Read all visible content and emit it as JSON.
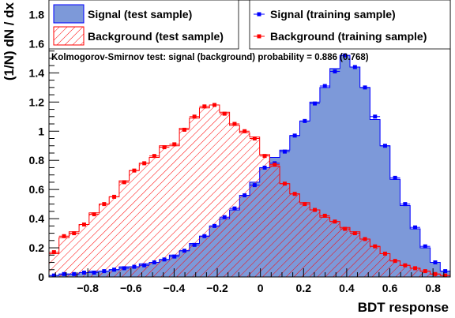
{
  "chart_data": {
    "type": "histogram",
    "xlabel": "BDT response",
    "ylabel": "(1/N) dN / dx",
    "xlim": [
      -0.98,
      0.88
    ],
    "ylim": [
      0,
      1.9
    ],
    "x_ticks": [
      -0.8,
      -0.6,
      -0.4,
      -0.2,
      0,
      0.2,
      0.4,
      0.6,
      0.8
    ],
    "x_tick_labels": [
      "−0.8",
      "−0.6",
      "−0.4",
      "−0.2",
      "0",
      "0.2",
      "0.4",
      "0.6",
      "0.8"
    ],
    "y_ticks": [
      0,
      0.2,
      0.4,
      0.6,
      0.8,
      1,
      1.2,
      1.4,
      1.6,
      1.8
    ],
    "y_tick_labels": [
      "0",
      "0.2",
      "0.4",
      "0.6",
      "0.8",
      "1",
      "1.2",
      "1.4",
      "1.6",
      "1.8"
    ],
    "annotation": "Kolmogorov-Smirnov test: signal (background) probability = 0.886 (0.768)",
    "legend": [
      {
        "label": "Signal (test sample)",
        "style": "fill",
        "color": "#7d99d9"
      },
      {
        "label": "Background (test sample)",
        "style": "hatch",
        "color": "#ff0000"
      },
      {
        "label": "Signal (training sample)",
        "style": "marker",
        "color": "#0000ff"
      },
      {
        "label": "Background (training sample)",
        "style": "marker",
        "color": "#ff0000"
      }
    ],
    "bin_edges": [
      -0.98,
      -0.9335,
      -0.887,
      -0.8405,
      -0.794,
      -0.7475,
      -0.701,
      -0.6545,
      -0.608,
      -0.5615,
      -0.515,
      -0.4685,
      -0.422,
      -0.3755,
      -0.329,
      -0.2825,
      -0.236,
      -0.1895,
      -0.143,
      -0.0965,
      -0.05,
      -0.0035,
      0.043,
      0.0895,
      0.136,
      0.1825,
      0.229,
      0.2755,
      0.322,
      0.3685,
      0.415,
      0.4615,
      0.508,
      0.5545,
      0.601,
      0.6475,
      0.694,
      0.7405,
      0.787,
      0.8335,
      0.88
    ],
    "series": [
      {
        "name": "Signal (test sample)",
        "style": "fill",
        "color": "#7d99d9",
        "values": [
          0.01,
          0.02,
          0.02,
          0.03,
          0.04,
          0.04,
          0.05,
          0.07,
          0.07,
          0.09,
          0.1,
          0.12,
          0.15,
          0.18,
          0.23,
          0.28,
          0.35,
          0.4,
          0.46,
          0.56,
          0.65,
          0.75,
          0.82,
          0.87,
          0.97,
          1.07,
          1.2,
          1.3,
          1.43,
          1.52,
          1.44,
          1.3,
          1.08,
          0.9,
          0.67,
          0.49,
          0.33,
          0.2,
          0.1,
          0.04
        ]
      },
      {
        "name": "Background (test sample)",
        "style": "hatch",
        "color": "#ff0000",
        "values": [
          0.16,
          0.27,
          0.31,
          0.36,
          0.44,
          0.5,
          0.55,
          0.66,
          0.73,
          0.78,
          0.82,
          0.9,
          0.9,
          1.02,
          1.09,
          1.16,
          1.18,
          1.13,
          1.04,
          0.99,
          0.96,
          0.84,
          0.76,
          0.64,
          0.57,
          0.51,
          0.46,
          0.41,
          0.38,
          0.34,
          0.31,
          0.26,
          0.21,
          0.16,
          0.11,
          0.08,
          0.06,
          0.04,
          0.02,
          0.01
        ]
      },
      {
        "name": "Signal (training sample)",
        "style": "marker",
        "color": "#0000ff",
        "values": [
          0.01,
          0.02,
          0.02,
          0.03,
          0.03,
          0.04,
          0.05,
          0.06,
          0.07,
          0.08,
          0.1,
          0.12,
          0.14,
          0.18,
          0.22,
          0.28,
          0.35,
          0.41,
          0.47,
          0.56,
          0.63,
          0.75,
          0.78,
          0.86,
          0.97,
          1.07,
          1.19,
          1.31,
          1.41,
          1.52,
          1.44,
          1.3,
          1.1,
          0.9,
          0.68,
          0.5,
          0.34,
          0.21,
          0.1,
          0.04
        ]
      },
      {
        "name": "Background (training sample)",
        "style": "marker",
        "color": "#ff0000",
        "values": [
          0.17,
          0.28,
          0.3,
          0.36,
          0.43,
          0.5,
          0.55,
          0.65,
          0.73,
          0.78,
          0.83,
          0.89,
          0.91,
          1.01,
          1.1,
          1.17,
          1.18,
          1.12,
          1.05,
          1.0,
          0.95,
          0.83,
          0.77,
          0.64,
          0.57,
          0.5,
          0.46,
          0.42,
          0.38,
          0.33,
          0.3,
          0.26,
          0.21,
          0.16,
          0.11,
          0.08,
          0.06,
          0.04,
          0.02,
          0.01
        ]
      }
    ]
  }
}
